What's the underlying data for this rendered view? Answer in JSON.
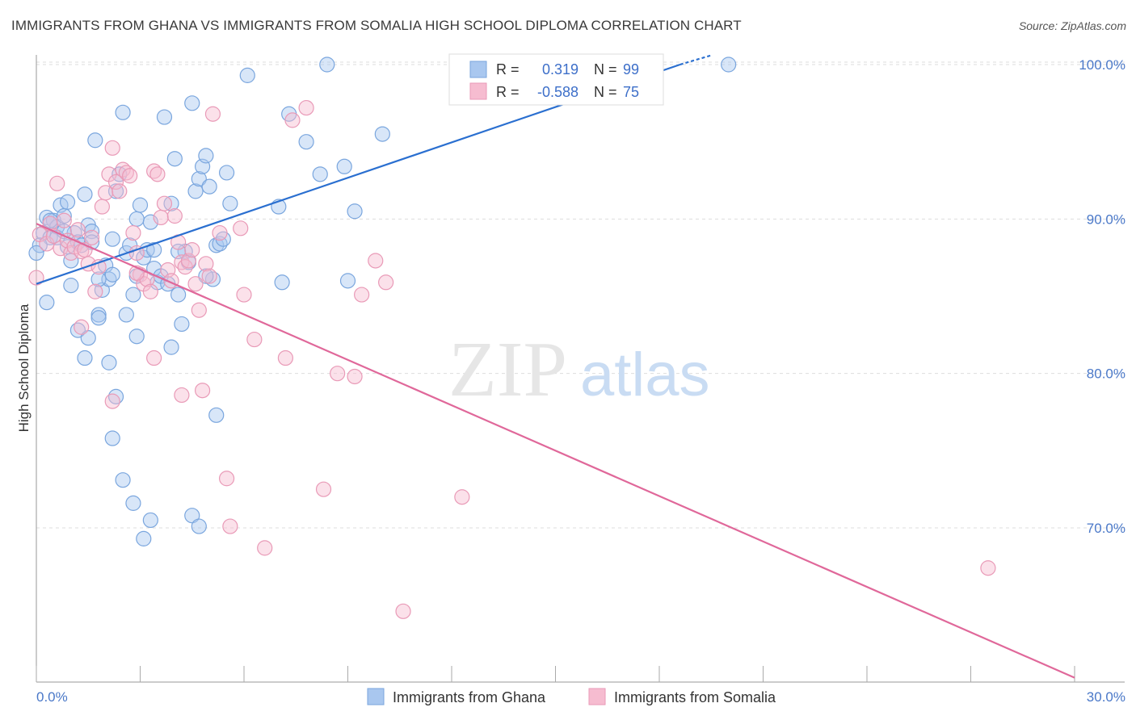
{
  "title": "IMMIGRANTS FROM GHANA VS IMMIGRANTS FROM SOMALIA HIGH SCHOOL DIPLOMA CORRELATION CHART",
  "source": "Source: ZipAtlas.com",
  "watermark": {
    "zip": "ZIP",
    "atlas": "atlas"
  },
  "colors": {
    "ghana_fill": "#a9c7ef",
    "ghana_stroke": "#7aa6de",
    "ghana_line": "#2a6fd0",
    "somalia_fill": "#f6bcd0",
    "somalia_stroke": "#e99ab7",
    "somalia_line": "#e0689a",
    "grid": "#dddddd",
    "axis_text": "#4a78c8"
  },
  "legend": {
    "r_label": "R =",
    "n_label": "N =",
    "ghana": {
      "r": "0.319",
      "n": "99"
    },
    "somalia": {
      "r": "-0.588",
      "n": "75"
    }
  },
  "chart_data": {
    "type": "scatter",
    "xlabel": "",
    "ylabel": "High School Diploma",
    "xlim": [
      0,
      30
    ],
    "ylim": [
      60,
      102
    ],
    "x_tick_labels": [
      "0.0%",
      "30.0%"
    ],
    "y_ticks": [
      70,
      80,
      90,
      100
    ],
    "y_tick_labels": [
      "70.0%",
      "80.0%",
      "90.0%",
      "100.0%"
    ],
    "grid": true,
    "legend_placement": "top-center",
    "series": [
      {
        "name": "Immigrants from Ghana",
        "trend": {
          "x": [
            0,
            18.6
          ],
          "y": [
            85.8,
            100.0
          ]
        },
        "trend_ext": {
          "x": [
            18.6,
            19.5
          ],
          "y": [
            100.0,
            100.6
          ]
        },
        "points": [
          [
            0.2,
            89.1
          ],
          [
            0.3,
            90.1
          ],
          [
            0.4,
            88.8
          ],
          [
            0.5,
            89.9
          ],
          [
            0.6,
            89.5
          ],
          [
            0.7,
            90.9
          ],
          [
            0.8,
            90.2
          ],
          [
            0.9,
            88.2
          ],
          [
            1.0,
            87.3
          ],
          [
            1.1,
            89.1
          ],
          [
            1.2,
            88.5
          ],
          [
            1.3,
            88.3
          ],
          [
            1.4,
            91.6
          ],
          [
            1.5,
            89.6
          ],
          [
            1.6,
            89.2
          ],
          [
            1.7,
            95.1
          ],
          [
            1.8,
            83.8
          ],
          [
            1.9,
            85.4
          ],
          [
            2.0,
            87.0
          ],
          [
            2.1,
            86.1
          ],
          [
            2.2,
            86.4
          ],
          [
            2.3,
            91.8
          ],
          [
            2.4,
            92.9
          ],
          [
            2.5,
            96.9
          ],
          [
            2.6,
            87.8
          ],
          [
            2.7,
            88.3
          ],
          [
            2.8,
            85.1
          ],
          [
            2.9,
            90.0
          ],
          [
            3.0,
            90.9
          ],
          [
            3.1,
            87.5
          ],
          [
            3.2,
            88.0
          ],
          [
            3.3,
            89.8
          ],
          [
            3.4,
            86.8
          ],
          [
            3.5,
            85.9
          ],
          [
            3.6,
            86.3
          ],
          [
            3.7,
            96.6
          ],
          [
            3.8,
            85.8
          ],
          [
            3.9,
            91.0
          ],
          [
            4.0,
            93.9
          ],
          [
            4.1,
            85.1
          ],
          [
            4.2,
            83.2
          ],
          [
            4.3,
            87.9
          ],
          [
            4.4,
            87.2
          ],
          [
            4.5,
            97.5
          ],
          [
            4.6,
            91.8
          ],
          [
            4.7,
            92.6
          ],
          [
            4.8,
            93.4
          ],
          [
            4.9,
            94.1
          ],
          [
            5.0,
            92.1
          ],
          [
            5.1,
            86.1
          ],
          [
            5.2,
            88.3
          ],
          [
            5.3,
            88.4
          ],
          [
            5.4,
            88.7
          ],
          [
            5.5,
            93.0
          ],
          [
            5.6,
            91.0
          ],
          [
            1.0,
            85.7
          ],
          [
            1.2,
            82.8
          ],
          [
            1.4,
            81.0
          ],
          [
            1.5,
            82.3
          ],
          [
            1.8,
            83.6
          ],
          [
            2.1,
            80.7
          ],
          [
            2.3,
            78.5
          ],
          [
            2.2,
            75.8
          ],
          [
            2.5,
            73.1
          ],
          [
            2.8,
            71.6
          ],
          [
            3.3,
            70.5
          ],
          [
            3.1,
            69.3
          ],
          [
            4.5,
            70.8
          ],
          [
            4.7,
            70.1
          ],
          [
            5.2,
            77.3
          ],
          [
            2.9,
            86.3
          ],
          [
            2.9,
            82.4
          ],
          [
            3.9,
            81.7
          ],
          [
            2.6,
            83.8
          ],
          [
            1.8,
            86.1
          ],
          [
            6.1,
            99.3
          ],
          [
            7.0,
            90.8
          ],
          [
            7.1,
            85.9
          ],
          [
            7.3,
            96.8
          ],
          [
            7.8,
            95.0
          ],
          [
            8.2,
            92.9
          ],
          [
            8.4,
            100.0
          ],
          [
            8.9,
            93.4
          ],
          [
            9.0,
            86.0
          ],
          [
            9.2,
            90.5
          ],
          [
            10.0,
            95.5
          ],
          [
            20.0,
            100.0
          ],
          [
            0.1,
            88.3
          ],
          [
            0.3,
            84.6
          ],
          [
            0.6,
            88.8
          ],
          [
            0.8,
            89.2
          ],
          [
            1.6,
            88.5
          ],
          [
            2.2,
            88.7
          ],
          [
            3.4,
            88.0
          ],
          [
            4.1,
            87.9
          ],
          [
            4.9,
            86.3
          ],
          [
            0.0,
            87.8
          ],
          [
            0.4,
            89.9
          ],
          [
            0.9,
            91.1
          ]
        ]
      },
      {
        "name": "Immigrants from Somalia",
        "trend": {
          "x": [
            0,
            30
          ],
          "y": [
            89.7,
            60.3
          ]
        },
        "points": [
          [
            0.1,
            89.0
          ],
          [
            0.3,
            88.4
          ],
          [
            0.4,
            89.7
          ],
          [
            0.5,
            88.9
          ],
          [
            0.7,
            88.1
          ],
          [
            0.8,
            89.9
          ],
          [
            0.9,
            88.6
          ],
          [
            1.0,
            87.8
          ],
          [
            1.1,
            88.2
          ],
          [
            1.2,
            89.3
          ],
          [
            1.3,
            87.9
          ],
          [
            1.4,
            88.0
          ],
          [
            1.5,
            87.1
          ],
          [
            1.6,
            88.8
          ],
          [
            1.7,
            85.3
          ],
          [
            1.8,
            86.9
          ],
          [
            1.9,
            90.8
          ],
          [
            2.0,
            91.7
          ],
          [
            2.1,
            92.9
          ],
          [
            2.2,
            94.6
          ],
          [
            2.3,
            92.4
          ],
          [
            2.4,
            91.8
          ],
          [
            2.5,
            93.2
          ],
          [
            2.6,
            93.0
          ],
          [
            2.7,
            92.8
          ],
          [
            2.8,
            89.1
          ],
          [
            2.9,
            87.8
          ],
          [
            3.0,
            86.4
          ],
          [
            3.1,
            85.8
          ],
          [
            3.2,
            86.1
          ],
          [
            3.3,
            85.3
          ],
          [
            3.4,
            93.1
          ],
          [
            3.5,
            92.9
          ],
          [
            3.6,
            90.1
          ],
          [
            3.7,
            91.0
          ],
          [
            3.8,
            86.7
          ],
          [
            3.9,
            86.0
          ],
          [
            4.0,
            90.2
          ],
          [
            4.1,
            88.5
          ],
          [
            4.2,
            87.2
          ],
          [
            4.3,
            86.9
          ],
          [
            4.4,
            87.3
          ],
          [
            4.5,
            88.0
          ],
          [
            4.6,
            85.8
          ],
          [
            4.7,
            84.1
          ],
          [
            4.8,
            78.9
          ],
          [
            4.9,
            87.1
          ],
          [
            5.0,
            86.3
          ],
          [
            5.1,
            96.8
          ],
          [
            5.3,
            89.1
          ],
          [
            5.5,
            73.2
          ],
          [
            5.6,
            70.1
          ],
          [
            6.0,
            85.1
          ],
          [
            6.3,
            82.2
          ],
          [
            6.6,
            68.7
          ],
          [
            7.2,
            81.0
          ],
          [
            7.4,
            96.4
          ],
          [
            7.8,
            97.2
          ],
          [
            8.3,
            72.5
          ],
          [
            8.7,
            80.0
          ],
          [
            9.2,
            79.8
          ],
          [
            9.4,
            85.1
          ],
          [
            9.8,
            87.3
          ],
          [
            10.1,
            85.9
          ],
          [
            10.6,
            64.6
          ],
          [
            12.3,
            72.0
          ],
          [
            27.5,
            67.4
          ],
          [
            0.0,
            86.2
          ],
          [
            0.6,
            92.3
          ],
          [
            1.3,
            83.0
          ],
          [
            2.2,
            78.2
          ],
          [
            2.9,
            86.5
          ],
          [
            3.4,
            81.0
          ],
          [
            4.2,
            78.6
          ],
          [
            5.9,
            89.4
          ]
        ]
      }
    ]
  },
  "bottom_legend": {
    "ghana_label": "Immigrants from Ghana",
    "somalia_label": "Immigrants from Somalia"
  }
}
